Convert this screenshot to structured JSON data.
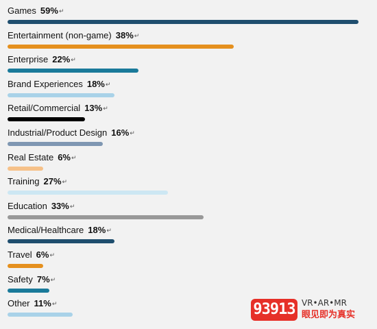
{
  "chart_data": {
    "type": "bar",
    "orientation": "horizontal",
    "title": "",
    "xlabel": "",
    "ylabel": "",
    "xlim": [
      0,
      59
    ],
    "grid": false,
    "legend": "none",
    "categories": [
      "Games",
      "Entertainment (non-game)",
      "Enterprise",
      "Brand Experiences",
      "Retail/Commercial",
      "Industrial/Product Design",
      "Real Estate",
      "Training",
      "Education",
      "Medical/Healthcare",
      "Travel",
      "Safety",
      "Other"
    ],
    "values": [
      59,
      38,
      22,
      18,
      13,
      16,
      6,
      27,
      33,
      18,
      6,
      7,
      11
    ],
    "value_labels": [
      "59%",
      "38%",
      "22%",
      "18%",
      "13%",
      "16%",
      "6%",
      "27%",
      "33%",
      "18%",
      "6%",
      "7%",
      "11%"
    ],
    "colors": [
      "#1f4e6e",
      "#e5901e",
      "#1a7a9a",
      "#a9d2e8",
      "#000000",
      "#7f97b2",
      "#f6c189",
      "#cde7f3",
      "#999999",
      "#1f4e6e",
      "#e5901e",
      "#1a7a9a",
      "#a9d2e8"
    ]
  },
  "watermark": {
    "logo_text": "93913",
    "line1": "VR•AR•MR",
    "line2": "眼见即为真实"
  }
}
